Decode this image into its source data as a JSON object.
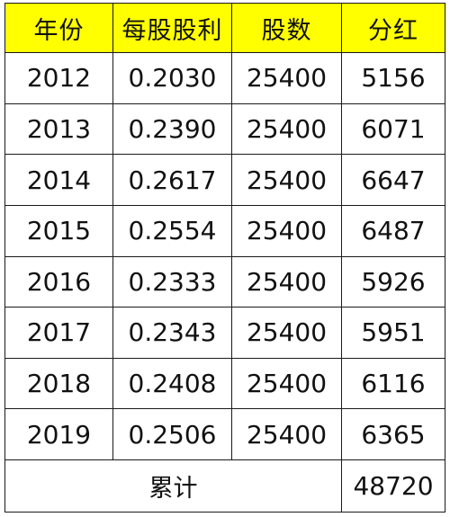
{
  "table": {
    "headers": [
      "年份",
      "每股股利",
      "股数",
      "分红"
    ],
    "rows": [
      [
        "2012",
        "0.2030",
        "25400",
        "5156"
      ],
      [
        "2013",
        "0.2390",
        "25400",
        "6071"
      ],
      [
        "2014",
        "0.2617",
        "25400",
        "6647"
      ],
      [
        "2015",
        "0.2554",
        "25400",
        "6487"
      ],
      [
        "2016",
        "0.2333",
        "25400",
        "5926"
      ],
      [
        "2017",
        "0.2343",
        "25400",
        "5951"
      ],
      [
        "2018",
        "0.2408",
        "25400",
        "6116"
      ],
      [
        "2019",
        "0.2506",
        "25400",
        "6365"
      ]
    ],
    "total_label": "累计",
    "total_value": "48720"
  },
  "colors": {
    "header_background": "#ffff00",
    "border": "#1a1a1a",
    "text": "#111111"
  }
}
